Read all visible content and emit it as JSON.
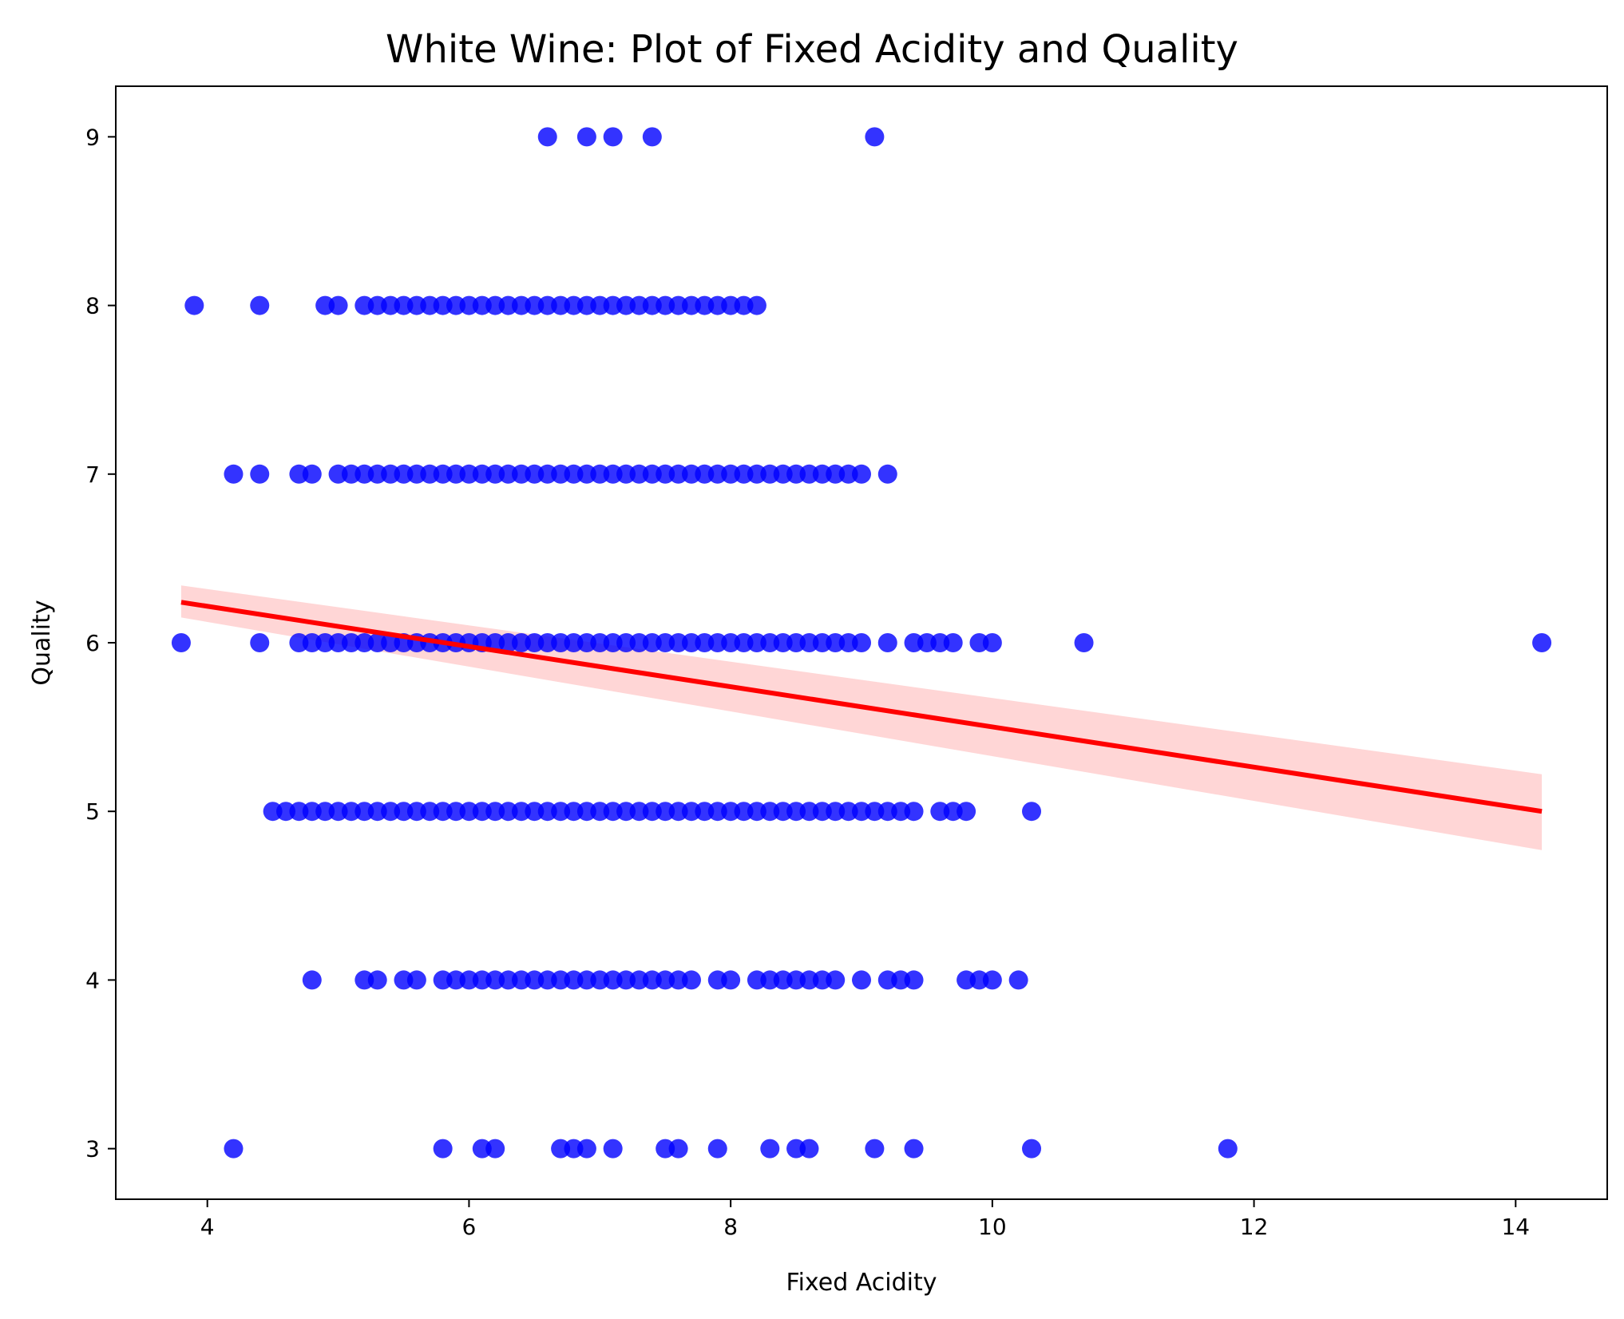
{
  "chart_data": {
    "type": "scatter",
    "title": "White Wine: Plot of Fixed Acidity and Quality",
    "xlabel": "Fixed Acidity",
    "ylabel": "Quality",
    "xlim": [
      3.3,
      14.7
    ],
    "ylim": [
      2.7,
      9.3
    ],
    "xticks": [
      4,
      6,
      8,
      10,
      12,
      14
    ],
    "yticks": [
      3,
      4,
      5,
      6,
      7,
      8,
      9
    ],
    "grid": false,
    "point_color": "#0000ff",
    "line_color": "#ff0000",
    "band_color": "#ffcccc",
    "regression": {
      "x": [
        3.8,
        14.2
      ],
      "y": [
        6.24,
        5.0
      ],
      "ci_lower": [
        6.15,
        4.77
      ],
      "ci_upper": [
        6.34,
        5.22
      ]
    },
    "points": [
      {
        "quality": 9,
        "x": [
          6.6,
          6.9,
          7.1,
          7.4,
          9.1
        ]
      },
      {
        "quality": 8,
        "x": [
          3.9,
          4.4,
          4.9,
          5.0,
          5.2,
          5.3,
          5.4,
          5.5,
          5.6,
          5.7,
          5.8,
          5.9,
          6.0,
          6.1,
          6.2,
          6.3,
          6.4,
          6.5,
          6.6,
          6.7,
          6.8,
          6.9,
          7.0,
          7.1,
          7.2,
          7.3,
          7.4,
          7.5,
          7.6,
          7.7,
          7.8,
          7.9,
          8.0,
          8.1,
          8.2
        ]
      },
      {
        "quality": 7,
        "x": [
          4.2,
          4.4,
          4.7,
          4.8,
          5.0,
          5.1,
          5.2,
          5.3,
          5.4,
          5.5,
          5.6,
          5.7,
          5.8,
          5.9,
          6.0,
          6.1,
          6.2,
          6.3,
          6.4,
          6.5,
          6.6,
          6.7,
          6.8,
          6.9,
          7.0,
          7.1,
          7.2,
          7.3,
          7.4,
          7.5,
          7.6,
          7.7,
          7.8,
          7.9,
          8.0,
          8.1,
          8.2,
          8.3,
          8.4,
          8.5,
          8.6,
          8.7,
          8.8,
          8.9,
          9.0,
          9.2
        ]
      },
      {
        "quality": 6,
        "x": [
          3.8,
          4.4,
          4.7,
          4.8,
          4.9,
          5.0,
          5.1,
          5.2,
          5.3,
          5.4,
          5.5,
          5.6,
          5.7,
          5.8,
          5.9,
          6.0,
          6.1,
          6.2,
          6.3,
          6.4,
          6.5,
          6.6,
          6.7,
          6.8,
          6.9,
          7.0,
          7.1,
          7.2,
          7.3,
          7.4,
          7.5,
          7.6,
          7.7,
          7.8,
          7.9,
          8.0,
          8.1,
          8.2,
          8.3,
          8.4,
          8.5,
          8.6,
          8.7,
          8.8,
          8.9,
          9.0,
          9.2,
          9.4,
          9.5,
          9.6,
          9.7,
          9.9,
          10.0,
          10.7,
          14.2
        ]
      },
      {
        "quality": 5,
        "x": [
          4.5,
          4.6,
          4.7,
          4.8,
          4.9,
          5.0,
          5.1,
          5.2,
          5.3,
          5.4,
          5.5,
          5.6,
          5.7,
          5.8,
          5.9,
          6.0,
          6.1,
          6.2,
          6.3,
          6.4,
          6.5,
          6.6,
          6.7,
          6.8,
          6.9,
          7.0,
          7.1,
          7.2,
          7.3,
          7.4,
          7.5,
          7.6,
          7.7,
          7.8,
          7.9,
          8.0,
          8.1,
          8.2,
          8.3,
          8.4,
          8.5,
          8.6,
          8.7,
          8.8,
          8.9,
          9.0,
          9.1,
          9.2,
          9.3,
          9.4,
          9.6,
          9.7,
          9.8,
          10.3
        ]
      },
      {
        "quality": 4,
        "x": [
          4.8,
          5.2,
          5.3,
          5.5,
          5.6,
          5.8,
          5.9,
          6.0,
          6.1,
          6.2,
          6.3,
          6.4,
          6.5,
          6.6,
          6.7,
          6.8,
          6.9,
          7.0,
          7.1,
          7.2,
          7.3,
          7.4,
          7.5,
          7.6,
          7.7,
          7.9,
          8.0,
          8.2,
          8.3,
          8.4,
          8.5,
          8.6,
          8.7,
          8.8,
          9.0,
          9.2,
          9.3,
          9.4,
          9.8,
          9.9,
          10.0,
          10.2
        ]
      },
      {
        "quality": 3,
        "x": [
          4.2,
          5.8,
          6.1,
          6.2,
          6.7,
          6.8,
          6.9,
          7.1,
          7.5,
          7.6,
          7.9,
          8.3,
          8.5,
          8.6,
          9.1,
          9.4,
          10.3,
          11.8
        ]
      }
    ]
  }
}
